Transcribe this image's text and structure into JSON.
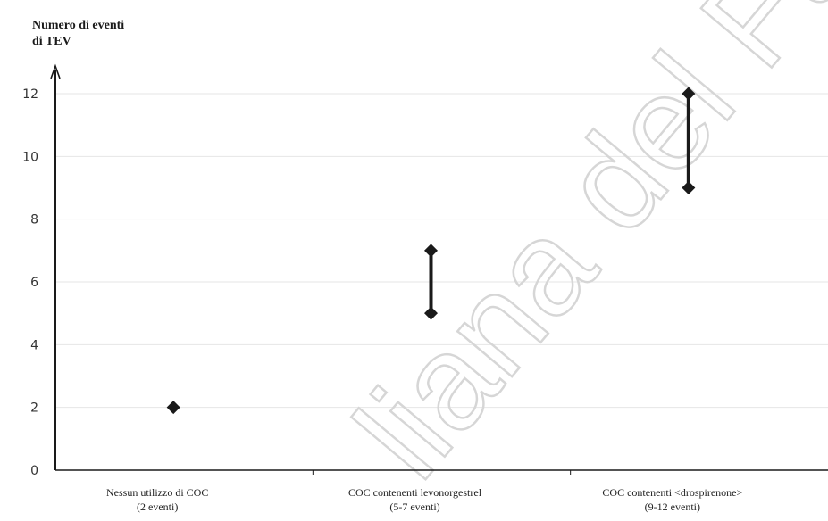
{
  "watermark": "liana del Farm",
  "chart_data": {
    "type": "range",
    "ylabel_lines": [
      "Numero di eventi",
      "di TEV"
    ],
    "ylim": [
      0,
      12
    ],
    "yticks": [
      0,
      2,
      4,
      6,
      8,
      10,
      12
    ],
    "grid": true,
    "categories": [
      {
        "label_lines": [
          "Nessun utilizzo di COC",
          "(2 eventi)"
        ],
        "low": 2,
        "high": 2
      },
      {
        "label_lines": [
          "COC contenenti levonorgestrel",
          "(5-7 eventi)"
        ],
        "low": 5,
        "high": 7
      },
      {
        "label_lines": [
          "COC contenenti <drospirenone>",
          "(9-12 eventi)"
        ],
        "low": 9,
        "high": 12
      }
    ],
    "colors": {
      "marker": "#1a1a1a",
      "axis": "#1a1a1a",
      "grid": "#e6e6e6"
    }
  }
}
